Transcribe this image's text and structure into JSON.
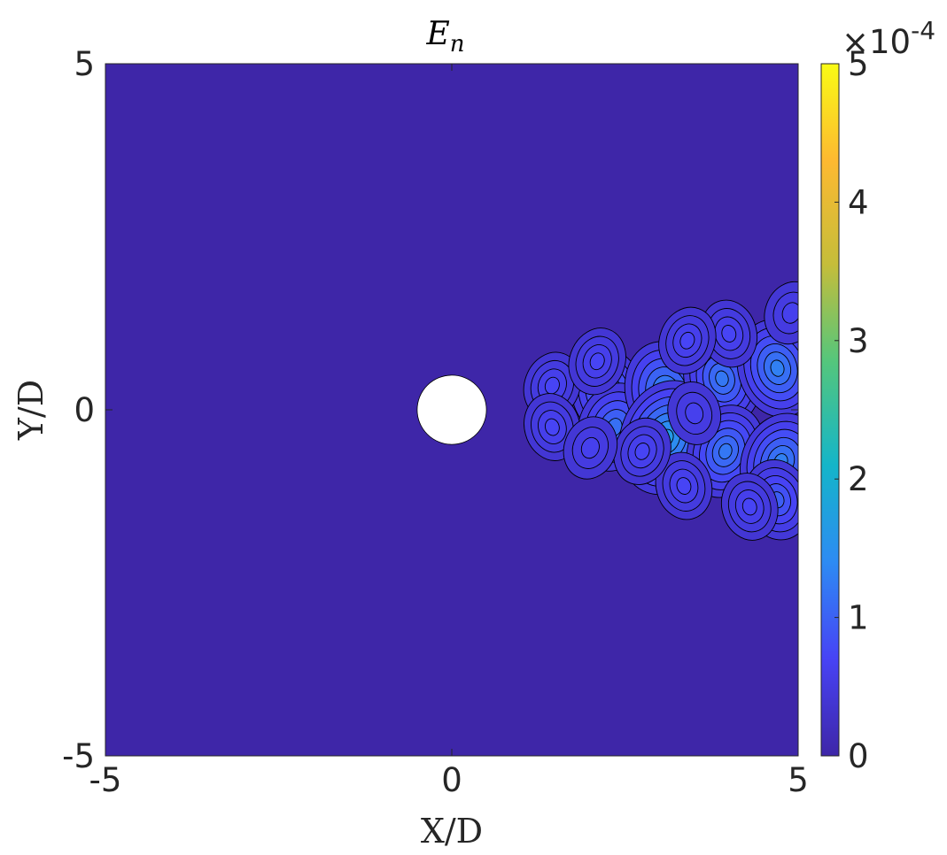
{
  "chart_data": {
    "type": "heatmap",
    "title": "E",
    "title_subscript": "n",
    "xlabel": "X/D",
    "ylabel": "Y/D",
    "xlim": [
      -5,
      5
    ],
    "ylim": [
      -5,
      5
    ],
    "x_ticks": [
      -5,
      0,
      5
    ],
    "y_ticks": [
      -5,
      0,
      5
    ],
    "x_tick_labels": [
      "-5",
      "0",
      "5"
    ],
    "y_tick_labels": [
      "-5",
      "0",
      "5"
    ],
    "colorbar": {
      "range": [
        0,
        0.0005
      ],
      "ticks": [
        0,
        1,
        2,
        3,
        4,
        5
      ],
      "tick_labels": [
        "0",
        "1",
        "2",
        "3",
        "4",
        "5"
      ],
      "multiplier_label": "×10",
      "multiplier_exponent": "-4",
      "colormap": "parula",
      "colors": [
        "#3e26a8",
        "#4743f5",
        "#2d8bf3",
        "#14b5c9",
        "#54c67c",
        "#c5bd3a",
        "#fdb931",
        "#f9fb15"
      ]
    },
    "cylinder": {
      "center": [
        0,
        0
      ],
      "diameter": 1
    },
    "background_color": "#3e26a8",
    "contour_line_color": "#000000",
    "grid": false,
    "features": [
      {
        "x": 2.25,
        "y": 0.25,
        "value": 0.0001
      },
      {
        "x": 2.35,
        "y": -0.25,
        "value": 0.0001
      },
      {
        "x": 3.1,
        "y": 0.25,
        "value": 0.00013
      },
      {
        "x": 3.1,
        "y": -0.4,
        "value": 0.00016
      },
      {
        "x": 3.9,
        "y": 0.45,
        "value": 0.00011
      },
      {
        "x": 3.95,
        "y": -0.6,
        "value": 0.00011
      },
      {
        "x": 4.7,
        "y": 0.6,
        "value": 0.00012
      },
      {
        "x": 4.75,
        "y": -0.75,
        "value": 0.00012
      },
      {
        "x": 4.7,
        "y": -1.3,
        "value": 8e-05
      },
      {
        "x": 1.45,
        "y": 0.35,
        "value": 5e-05
      },
      {
        "x": 1.45,
        "y": -0.25,
        "value": 5e-05
      },
      {
        "x": 2.1,
        "y": 0.7,
        "value": 5e-05
      },
      {
        "x": 4.0,
        "y": 1.1,
        "value": 5e-05
      },
      {
        "x": 3.4,
        "y": 1.0,
        "value": 5e-05
      },
      {
        "x": 3.35,
        "y": -1.1,
        "value": 5e-05
      },
      {
        "x": 4.9,
        "y": 1.4,
        "value": 4e-05
      },
      {
        "x": 3.5,
        "y": -0.05,
        "value": 4e-05
      },
      {
        "x": 2.75,
        "y": -0.6,
        "value": 5e-05
      },
      {
        "x": 4.3,
        "y": -1.4,
        "value": 5e-05
      },
      {
        "x": 2.0,
        "y": -0.55,
        "value": 4e-05
      }
    ]
  }
}
